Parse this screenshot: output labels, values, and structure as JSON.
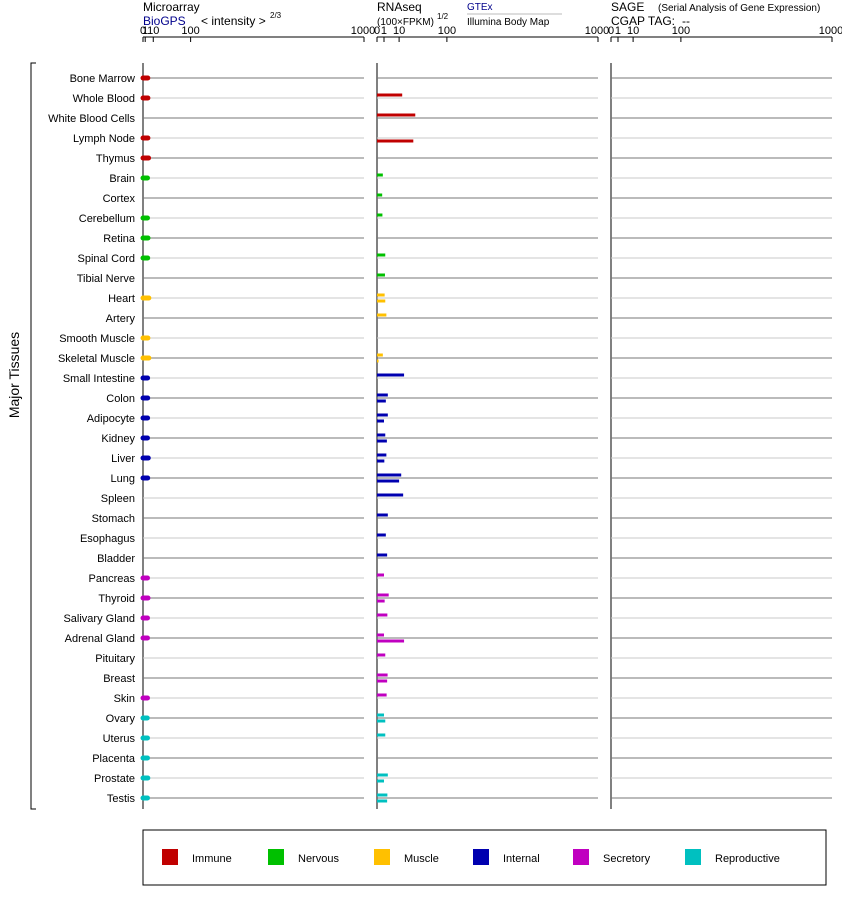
{
  "panels": {
    "microarray": {
      "title": "Microarray",
      "source": "BioGPS",
      "scale_label": "< intensity >",
      "scale_exp": "2/3",
      "ticks": [
        "0",
        "1",
        "10",
        "100",
        "1000"
      ]
    },
    "rnaseq": {
      "title": "RNAseq",
      "units": "(100×FPKM)",
      "units_exp": "1/2",
      "source1": "GTEx",
      "source2": "Illumina Body Map",
      "ticks": [
        "0",
        "1",
        "10",
        "100",
        "1000"
      ]
    },
    "sage": {
      "title": "SAGE",
      "subtitle": "(Serial Analysis of Gene Expression)",
      "tag_label": "CGAP TAG:",
      "tag_value": "--",
      "ticks": [
        "0",
        "1",
        "10",
        "100",
        "1000"
      ]
    }
  },
  "side_label": "Major Tissues",
  "colors": {
    "Immune": "#c00000",
    "Nervous": "#00c000",
    "Muscle": "#ffc000",
    "Internal": "#0000b0",
    "Secretory": "#c000c0",
    "Reproductive": "#00c0c0"
  },
  "legend": [
    "Immune",
    "Nervous",
    "Muscle",
    "Internal",
    "Secretory",
    "Reproductive"
  ],
  "chart_data": {
    "type": "bar",
    "orientation": "horizontal",
    "x_scale": "power 2/3 (microarray), square root (RNAseq)",
    "xlim": [
      0,
      1000
    ],
    "categories": [
      "Bone Marrow",
      "Whole Blood",
      "White Blood Cells",
      "Lymph Node",
      "Thymus",
      "Brain",
      "Cortex",
      "Cerebellum",
      "Retina",
      "Spinal Cord",
      "Tibial Nerve",
      "Heart",
      "Artery",
      "Smooth Muscle",
      "Skeletal Muscle",
      "Small Intestine",
      "Colon",
      "Adipocyte",
      "Kidney",
      "Liver",
      "Lung",
      "Spleen",
      "Stomach",
      "Esophagus",
      "Bladder",
      "Pancreas",
      "Thyroid",
      "Salivary Gland",
      "Adrenal Gland",
      "Pituitary",
      "Breast",
      "Skin",
      "Ovary",
      "Uterus",
      "Placenta",
      "Prostate",
      "Testis"
    ],
    "groups": [
      "Immune",
      "Immune",
      "Immune",
      "Immune",
      "Immune",
      "Nervous",
      "Nervous",
      "Nervous",
      "Nervous",
      "Nervous",
      "Nervous",
      "Muscle",
      "Muscle",
      "Muscle",
      "Muscle",
      "Internal",
      "Internal",
      "Internal",
      "Internal",
      "Internal",
      "Internal",
      "Internal",
      "Internal",
      "Internal",
      "Internal",
      "Secretory",
      "Secretory",
      "Secretory",
      "Secretory",
      "Secretory",
      "Secretory",
      "Secretory",
      "Reproductive",
      "Reproductive",
      "Reproductive",
      "Reproductive",
      "Reproductive"
    ],
    "series": [
      {
        "name": "BioGPS",
        "values": [
          3.2,
          3.3,
          null,
          3.3,
          4.0,
          2.9,
          null,
          2.9,
          3.4,
          3.1,
          null,
          4.3,
          null,
          3.3,
          4.3,
          3.0,
          3.1,
          3.0,
          2.9,
          3.7,
          3.1,
          null,
          null,
          null,
          null,
          2.9,
          3.4,
          2.9,
          2.9,
          null,
          null,
          2.9,
          2.7,
          2.9,
          2.9,
          3.2,
          2.9
        ]
      },
      {
        "name": "GTEx",
        "values": [
          null,
          13,
          30,
          null,
          null,
          0.7,
          0.55,
          0.6,
          null,
          1.4,
          1.3,
          1.2,
          1.8,
          null,
          0.7,
          15,
          2.4,
          2.4,
          1.4,
          1.8,
          12,
          14,
          2.4,
          1.6,
          2.1,
          1.0,
          2.8,
          2.2,
          1.0,
          1.4,
          2.3,
          1.9,
          1.0,
          1.4,
          null,
          2.4,
          2.2
        ]
      },
      {
        "name": "Illumina Body Map",
        "values": [
          null,
          null,
          null,
          27,
          null,
          null,
          null,
          null,
          null,
          null,
          null,
          1.4,
          null,
          null,
          0.05,
          null,
          1.6,
          1.0,
          2.0,
          1.1,
          10,
          null,
          null,
          null,
          null,
          null,
          1.2,
          null,
          15,
          null,
          2.1,
          null,
          1.4,
          null,
          null,
          1.0,
          2.1
        ]
      },
      {
        "name": "SAGE",
        "values": [
          null,
          null,
          null,
          null,
          null,
          null,
          null,
          null,
          null,
          null,
          null,
          null,
          null,
          null,
          null,
          null,
          null,
          null,
          null,
          null,
          null,
          null,
          null,
          null,
          null,
          null,
          null,
          null,
          null,
          null,
          null,
          null,
          null,
          null,
          null,
          null,
          null
        ]
      }
    ]
  }
}
